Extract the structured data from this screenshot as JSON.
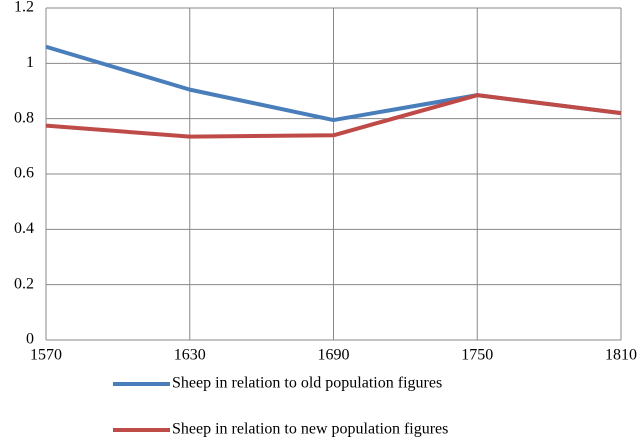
{
  "chart_data": {
    "type": "line",
    "x": [
      1570,
      1630,
      1690,
      1750,
      1810
    ],
    "xlim": [
      1570,
      1810
    ],
    "xticks": [
      1570,
      1630,
      1690,
      1750,
      1810
    ],
    "ylim": [
      0,
      1.2
    ],
    "yticks": [
      0,
      0.2,
      0.4,
      0.6,
      0.8,
      1,
      1.2
    ],
    "grid": true,
    "legend": "bottom",
    "series": [
      {
        "name": "Sheep in relation to old population figures",
        "color": "#4a7ebb",
        "values": [
          1.06,
          0.905,
          0.795,
          0.885,
          0.82
        ]
      },
      {
        "name": "Sheep in relation to new population figures",
        "color": "#be4b48",
        "values": [
          0.775,
          0.735,
          0.74,
          0.885,
          0.82
        ]
      }
    ]
  }
}
